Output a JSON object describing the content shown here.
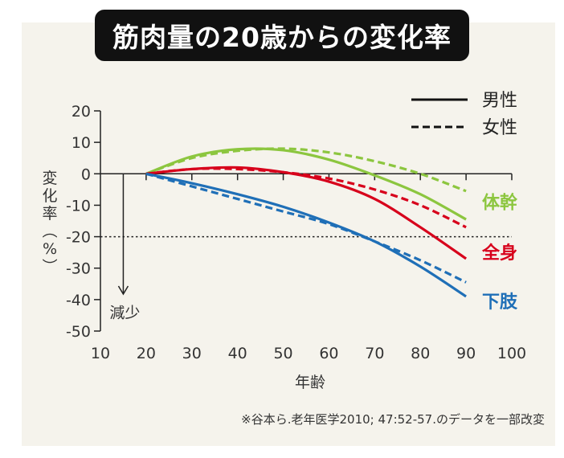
{
  "title": "筋肉量の20歳からの変化率",
  "footnote": "※谷本ら.老年医学2010; 47:52-57.のデータを一部改変",
  "colors": {
    "trunk": "#8cc63f",
    "whole": "#d7001b",
    "lower": "#1f6fb7",
    "ink": "#222222"
  },
  "chart_data": {
    "type": "line",
    "xlabel": "年齢",
    "ylabel": "変化率（%）",
    "xlim": [
      10,
      100
    ],
    "ylim": [
      -50,
      20
    ],
    "x_ticks": [
      10,
      20,
      30,
      40,
      50,
      60,
      70,
      80,
      90,
      100
    ],
    "y_ticks": [
      20,
      10,
      0,
      -10,
      -20,
      -30,
      -40,
      -50
    ],
    "reference_line": {
      "y": -20,
      "style": "dotted"
    },
    "annotation": {
      "text": "減少",
      "x": 15
    },
    "legend": {
      "position": "top-right",
      "entries": [
        {
          "label": "男性",
          "style": "solid"
        },
        {
          "label": "女性",
          "style": "dashed"
        }
      ]
    },
    "groups": [
      {
        "label": "体幹",
        "color": "#8cc63f",
        "series": [
          {
            "sex": "男性",
            "style": "solid",
            "x": [
              20,
              30,
              40,
              50,
              60,
              70,
              80,
              90
            ],
            "y": [
              0,
              5.5,
              7.8,
              7.5,
              4.5,
              -0.5,
              -6.5,
              -14.5
            ]
          },
          {
            "sex": "女性",
            "style": "dashed",
            "x": [
              20,
              30,
              40,
              50,
              60,
              70,
              80,
              90
            ],
            "y": [
              0,
              5.0,
              7.3,
              8.0,
              6.8,
              4.0,
              0,
              -5.5
            ]
          }
        ]
      },
      {
        "label": "全身",
        "color": "#d7001b",
        "series": [
          {
            "sex": "男性",
            "style": "solid",
            "x": [
              20,
              30,
              40,
              50,
              60,
              70,
              80,
              90
            ],
            "y": [
              0,
              1.5,
              2.0,
              0.5,
              -2.5,
              -8.0,
              -17.0,
              -27.0
            ]
          },
          {
            "sex": "女性",
            "style": "dashed",
            "x": [
              20,
              30,
              40,
              50,
              60,
              70,
              80,
              90
            ],
            "y": [
              0,
              1.5,
              1.5,
              0.5,
              -1.5,
              -5.0,
              -10.0,
              -17.0
            ]
          }
        ]
      },
      {
        "label": "下肢",
        "color": "#1f6fb7",
        "series": [
          {
            "sex": "男性",
            "style": "solid",
            "x": [
              20,
              30,
              40,
              50,
              60,
              70,
              80,
              90
            ],
            "y": [
              0,
              -3.0,
              -6.5,
              -10.5,
              -15.5,
              -21.5,
              -29.5,
              -39.0
            ]
          },
          {
            "sex": "女性",
            "style": "dashed",
            "x": [
              20,
              30,
              40,
              50,
              60,
              70,
              80,
              90
            ],
            "y": [
              0,
              -4.0,
              -8.0,
              -12.0,
              -16.0,
              -21.5,
              -27.5,
              -34.5
            ]
          }
        ]
      }
    ]
  }
}
